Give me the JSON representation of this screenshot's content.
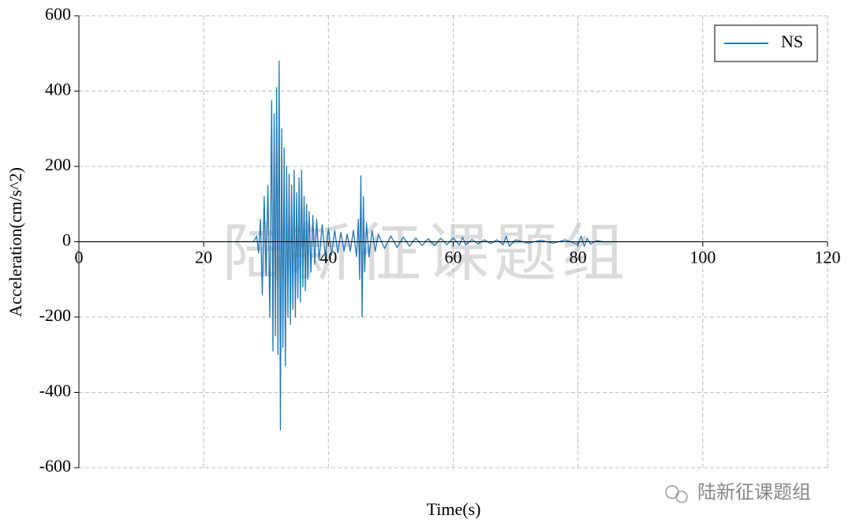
{
  "chart_data": {
    "type": "line",
    "xlabel": "Time(s)",
    "ylabel": "Acceleration(cm/s^2)",
    "x": [
      0,
      28,
      28.5,
      28.8,
      29.1,
      29.4,
      29.7,
      30,
      30.3,
      30.6,
      30.9,
      31.1,
      31.3,
      31.5,
      31.7,
      31.9,
      32.1,
      32.3,
      32.5,
      32.7,
      32.9,
      33.1,
      33.3,
      33.5,
      33.7,
      33.9,
      34.1,
      34.3,
      34.5,
      34.7,
      34.9,
      35.1,
      35.3,
      35.5,
      35.7,
      35.9,
      36.1,
      36.3,
      36.5,
      36.7,
      36.9,
      37.2,
      37.5,
      37.8,
      38.1,
      38.5,
      39,
      39.5,
      40,
      40.5,
      41,
      41.5,
      42,
      42.5,
      43,
      43.5,
      44,
      44.5,
      44.8,
      45,
      45.2,
      45.4,
      45.6,
      45.8,
      46.1,
      46.5,
      47,
      47.5,
      48,
      49,
      50,
      51,
      52,
      53,
      54,
      55,
      56,
      57,
      58,
      59,
      60,
      61,
      61.5,
      62,
      63,
      64,
      65,
      66,
      67,
      68,
      68.5,
      69,
      70,
      72,
      74,
      76,
      78,
      80,
      80.5,
      81,
      81.5,
      82,
      83,
      84,
      100
    ],
    "series": [
      {
        "name": "NS",
        "color": "#1f77b4",
        "values": [
          0,
          0,
          15,
          -30,
          60,
          -140,
          120,
          -90,
          150,
          -200,
          375,
          -290,
          340,
          -250,
          410,
          -300,
          480,
          -500,
          300,
          -280,
          250,
          -330,
          200,
          -200,
          180,
          -220,
          150,
          -180,
          190,
          -200,
          130,
          -150,
          170,
          -160,
          190,
          -120,
          120,
          -130,
          100,
          -100,
          80,
          -80,
          70,
          -60,
          60,
          -50,
          45,
          -40,
          35,
          -35,
          30,
          -30,
          25,
          -25,
          20,
          -25,
          30,
          -40,
          60,
          -100,
          175,
          -200,
          120,
          -80,
          50,
          -40,
          30,
          -25,
          20,
          -18,
          15,
          -15,
          12,
          -12,
          10,
          -10,
          8,
          -10,
          9,
          -8,
          10,
          -9,
          12,
          -8,
          6,
          -6,
          5,
          -5,
          5,
          -8,
          15,
          -12,
          5,
          -4,
          4,
          -4,
          5,
          -8,
          15,
          -12,
          8,
          -6,
          3,
          0,
          0
        ]
      }
    ],
    "xlim": [
      0,
      120
    ],
    "xticks": [
      0,
      20,
      40,
      60,
      80,
      100,
      120
    ],
    "ylim": [
      -600,
      600
    ],
    "yticks": [
      -600,
      -400,
      -200,
      0,
      200,
      400,
      600
    ],
    "grid": true,
    "legend": "upper right",
    "watermark": "陆新征课题组",
    "source": "陆新征课题组"
  }
}
